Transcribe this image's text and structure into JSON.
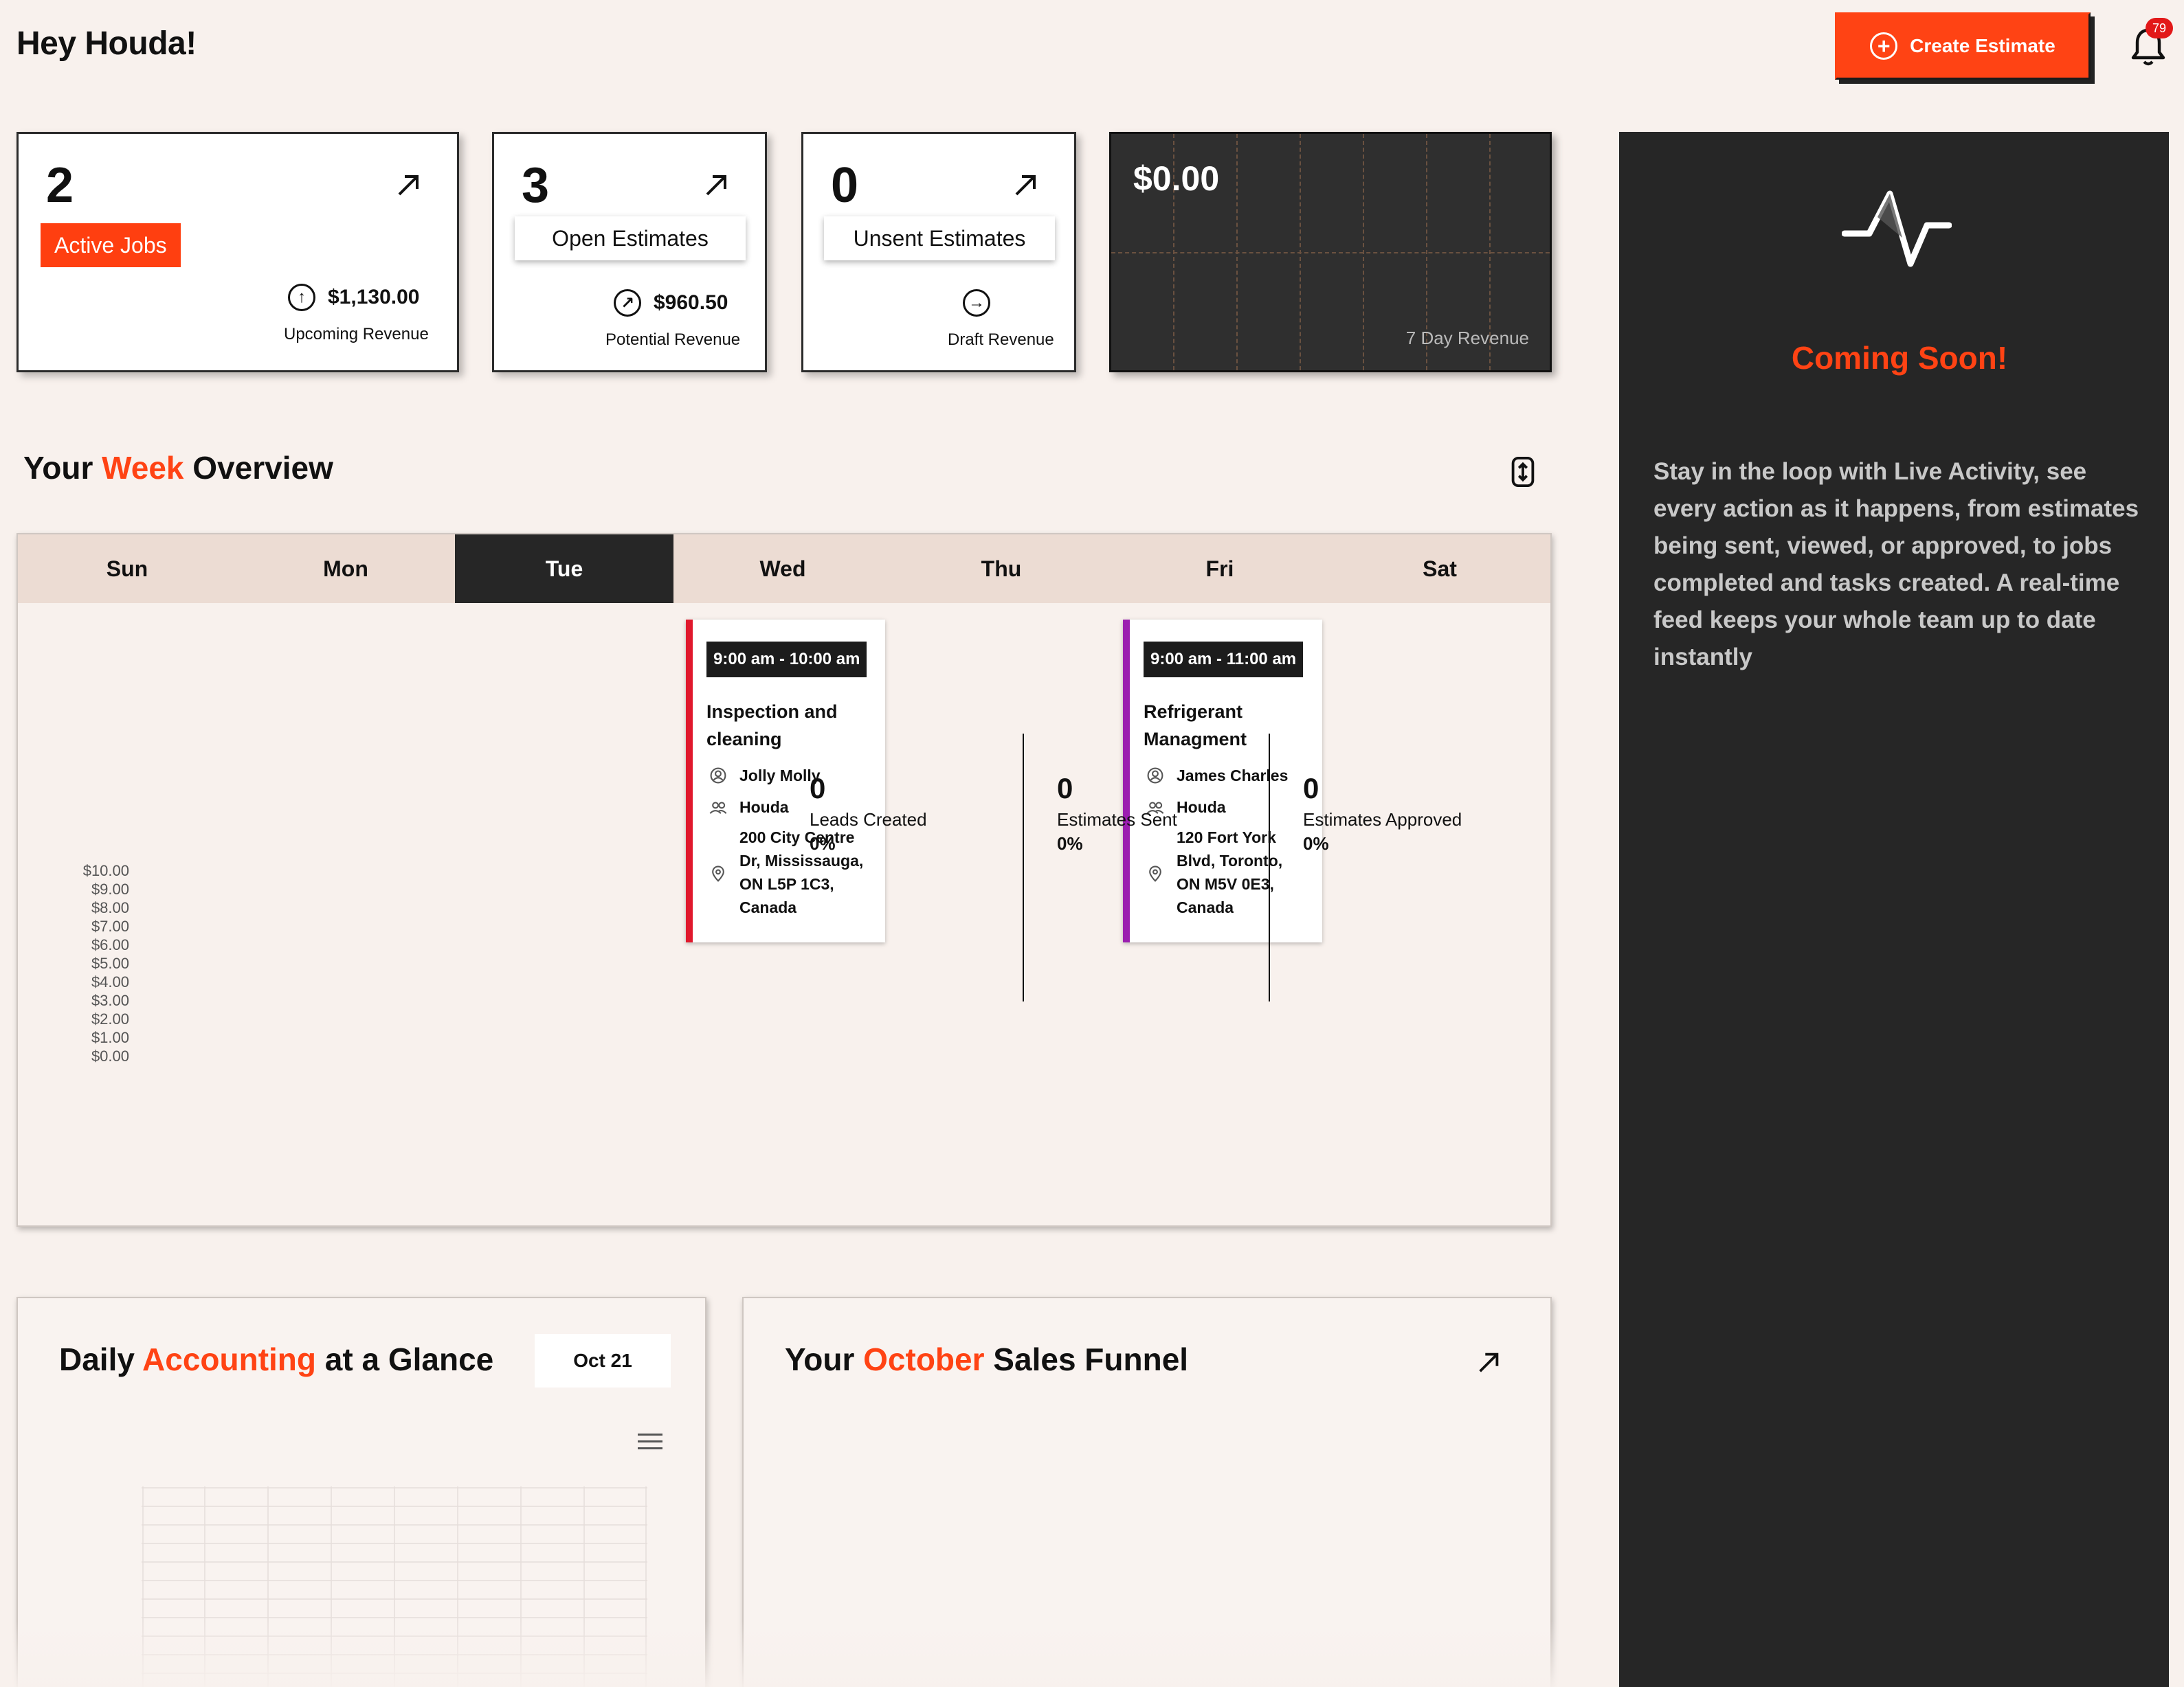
{
  "header": {
    "greeting": "Hey Houda!",
    "create_label": "Create Estimate",
    "notification_count": "79"
  },
  "stats": [
    {
      "value": "2",
      "label": "Active Jobs",
      "amount": "$1,130.00",
      "amount_label": "Upcoming Revenue"
    },
    {
      "value": "3",
      "label": "Open Estimates",
      "amount": "$960.50",
      "amount_label": "Potential Revenue"
    },
    {
      "value": "0",
      "label": "Unsent Estimates",
      "amount": "",
      "amount_label": "Draft Revenue"
    }
  ],
  "revenue_card": {
    "value": "$0.00",
    "label": "7 Day Revenue"
  },
  "live_activity": {
    "heading": "Coming Soon!",
    "description": "Stay in the loop with Live Activity, see every action as it happens, from estimates being sent, viewed, or approved, to jobs completed and tasks created. A real-time feed keeps your whole team up to date instantly"
  },
  "week": {
    "title_pre": "Your ",
    "title_accent": "Week",
    "title_post": " Overview",
    "days": [
      "Sun",
      "Mon",
      "Tue",
      "Wed",
      "Thu",
      "Fri",
      "Sat"
    ],
    "active_day": "Tue",
    "jobs": [
      {
        "day": "Wed",
        "time": "9:00 am - 10:00 am",
        "title": "Inspection and cleaning",
        "client": "Jolly Molly",
        "assignee": "Houda",
        "address": "200 City Centre Dr, Mississauga, ON L5P 1C3, Canada",
        "color": "#e0182c"
      },
      {
        "day": "Fri",
        "time": "9:00 am - 11:00 am",
        "title": "Refrigerant Managment",
        "client": "James Charles",
        "assignee": "Houda",
        "address": "120 Fort York Blvd, Toronto, ON M5V 0E3, Canada",
        "color": "#9b1fb0"
      }
    ]
  },
  "accounting": {
    "title_pre": "Daily ",
    "title_accent": "Accounting",
    "title_post": " at a Glance",
    "date": "Oct 21",
    "y_ticks": [
      "$10.00",
      "$9.00",
      "$8.00",
      "$7.00",
      "$6.00",
      "$5.00",
      "$4.00",
      "$3.00",
      "$2.00",
      "$1.00",
      "$0.00"
    ]
  },
  "funnel": {
    "title_pre": "Your ",
    "title_accent": "October",
    "title_post": " Sales Funnel",
    "columns": [
      {
        "value": "0",
        "label": "Leads Created",
        "percent": "0%"
      },
      {
        "value": "0",
        "label": "Estimates Sent",
        "percent": "0%"
      },
      {
        "value": "0",
        "label": "Estimates Approved",
        "percent": "0%"
      }
    ]
  },
  "colors": {
    "accent": "#ff4314",
    "dark": "#262626",
    "background": "#f8f1ed"
  }
}
